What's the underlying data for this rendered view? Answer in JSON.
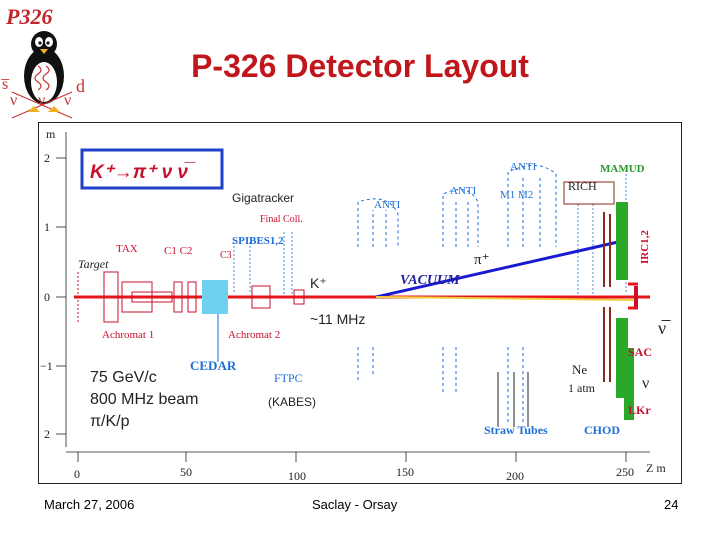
{
  "slide": {
    "logo_text": "P326",
    "title": "P-326 Detector Layout",
    "footer_left": "March 27, 2006",
    "footer_center": "Saclay - Orsay",
    "footer_right": "24"
  },
  "logo": {
    "quark_s": "s̅",
    "quark_d": "d",
    "nu_left": "ν",
    "nu_mid": "ν",
    "nu_right": "ν"
  },
  "diagram": {
    "decay_label": "K⁺→π⁺ ν ν̅",
    "axis_y_unit": "m",
    "y_ticks": [
      "2",
      "1",
      "0",
      "−1",
      "2"
    ],
    "x_ticks": [
      "0",
      "50",
      "100",
      "150",
      "200",
      "250"
    ],
    "x_axis_label": "Z m",
    "labels": {
      "gigatracker": "Gigatracker",
      "target": "Target",
      "tax": "TAX",
      "c1c2": "C1 C2",
      "c3": "C3",
      "final_coll": "Final Coll.",
      "spibes": "SPIBES1,2",
      "anti_top": "ANTI",
      "anti_mid": "ANTI",
      "anti_up": "ANTI",
      "m1m2": "M1 M2",
      "rich": "RICH",
      "mamud": "MAMUD",
      "irc": "IRC1,2",
      "pi_plus": "π⁺",
      "k_plus": "K⁺",
      "vacuum": "VACUUM",
      "nu_right": "ν̅",
      "nu_lower": "ν",
      "sac": "SAC",
      "eleven_mhz": "~11 MHz",
      "achromat1": "Achromat 1",
      "achromat2": "Achromat 2",
      "cedar": "CEDAR",
      "ftpc": "FTPC",
      "kabes": "(KABES)",
      "beam_line1": "75 GeV/c",
      "beam_line2": "800 MHz beam",
      "beam_line3": "π/K/p",
      "ne": "Ne",
      "one_atm": "1 atm",
      "lkr": "LKr",
      "straw": "Straw Tubes",
      "chod": "CHOD"
    }
  },
  "colors": {
    "title": "#c0161c",
    "beam": "#e8141c",
    "pion_track": "#1a1ad0",
    "decay_box": "#1f3fc8",
    "label_red": "#c8102e",
    "label_blue": "#1e6ed8",
    "label_green": "#2a9a2a",
    "cedar": "#6fd0f0"
  }
}
